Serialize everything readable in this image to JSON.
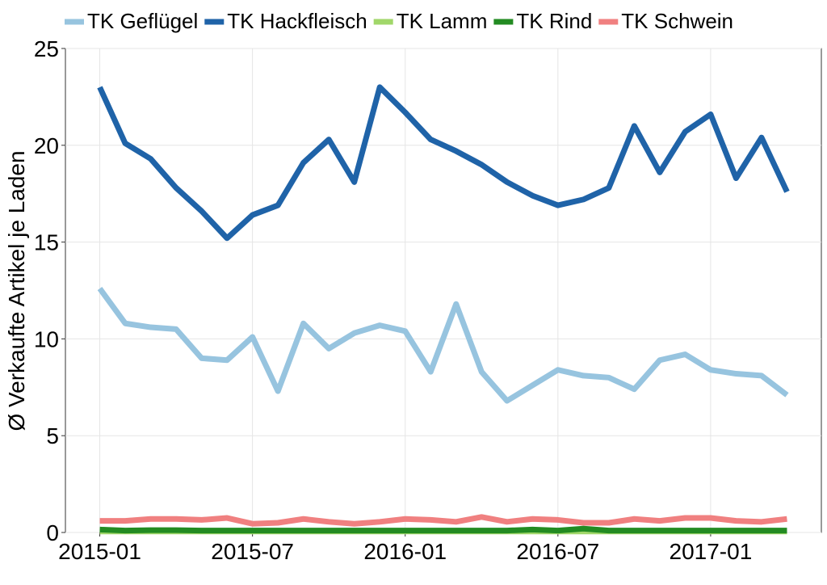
{
  "chart_data": {
    "type": "line",
    "y_label": "Ø Verkaufte Artikel je Laden",
    "x": [
      "2015-01",
      "2015-02",
      "2015-03",
      "2015-04",
      "2015-05",
      "2015-06",
      "2015-07",
      "2015-08",
      "2015-09",
      "2015-10",
      "2015-11",
      "2015-12",
      "2016-01",
      "2016-02",
      "2016-03",
      "2016-04",
      "2016-05",
      "2016-06",
      "2016-07",
      "2016-08",
      "2016-09",
      "2016-10",
      "2016-11",
      "2016-12",
      "2017-01",
      "2017-02",
      "2017-03",
      "2017-04"
    ],
    "xticks": [
      "2015-01",
      "2015-07",
      "2016-01",
      "2016-07",
      "2017-01"
    ],
    "ylim": [
      0,
      25
    ],
    "yticks": [
      0,
      5,
      10,
      15,
      20,
      25
    ],
    "grid": true,
    "series": [
      {
        "name": "TK Geflügel",
        "color": "#97c4df",
        "values": [
          12.6,
          10.8,
          10.6,
          10.5,
          9.0,
          8.9,
          10.1,
          7.3,
          10.8,
          9.5,
          10.3,
          10.7,
          10.4,
          8.3,
          11.8,
          8.3,
          6.8,
          7.6,
          8.4,
          8.1,
          8.0,
          7.4,
          8.9,
          9.2,
          8.4,
          8.2,
          8.1,
          7.1
        ]
      },
      {
        "name": "TK Hackfleisch",
        "color": "#1f63a8",
        "values": [
          23.0,
          20.1,
          19.3,
          17.8,
          16.6,
          15.2,
          16.4,
          16.9,
          19.1,
          20.3,
          18.1,
          23.0,
          21.7,
          20.3,
          19.7,
          19.0,
          18.1,
          17.4,
          16.9,
          17.2,
          17.8,
          21.0,
          18.6,
          20.7,
          21.6,
          18.3,
          20.4,
          17.6
        ]
      },
      {
        "name": "TK Lamm",
        "color": "#a1d76a",
        "values": [
          0.05,
          0.05,
          0.05,
          0.05,
          0.05,
          0.05,
          0.05,
          0.05,
          0.05,
          0.05,
          0.05,
          0.05,
          0.05,
          0.05,
          0.05,
          0.05,
          0.05,
          0.05,
          0.05,
          0.05,
          0.05,
          0.05,
          0.05,
          0.05,
          0.05,
          0.05,
          0.05,
          0.05
        ]
      },
      {
        "name": "TK Rind",
        "color": "#238b22",
        "values": [
          0.15,
          0.1,
          0.12,
          0.12,
          0.1,
          0.1,
          0.1,
          0.1,
          0.1,
          0.1,
          0.1,
          0.1,
          0.1,
          0.1,
          0.1,
          0.1,
          0.1,
          0.15,
          0.1,
          0.2,
          0.1,
          0.1,
          0.1,
          0.1,
          0.1,
          0.1,
          0.1,
          0.1
        ]
      },
      {
        "name": "TK Schwein",
        "color": "#f08080",
        "values": [
          0.6,
          0.6,
          0.7,
          0.7,
          0.65,
          0.75,
          0.45,
          0.5,
          0.7,
          0.55,
          0.45,
          0.55,
          0.7,
          0.65,
          0.55,
          0.8,
          0.55,
          0.7,
          0.65,
          0.5,
          0.5,
          0.7,
          0.6,
          0.75,
          0.75,
          0.6,
          0.55,
          0.7
        ]
      }
    ]
  }
}
